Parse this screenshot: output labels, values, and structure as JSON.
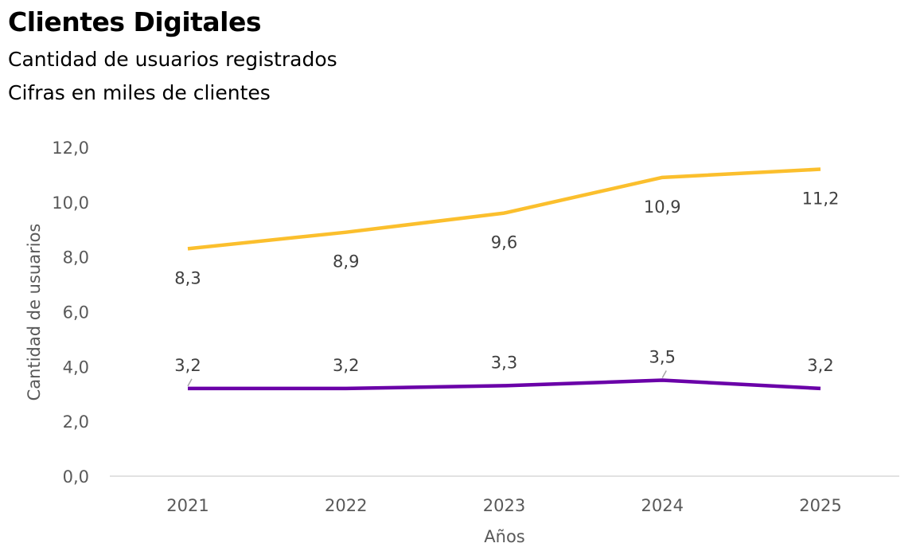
{
  "chart_data": {
    "type": "line",
    "title": "Clientes Digitales",
    "subtitle": "Cantidad de usuarios registrados",
    "subtitle2": "Cifras en miles de clientes",
    "xlabel": "Años",
    "ylabel": "Cantidad de usuarios",
    "categories": [
      "2021",
      "2022",
      "2023",
      "2024",
      "2025"
    ],
    "ylim": [
      0,
      12
    ],
    "yticks": [
      "0,0",
      "2,0",
      "4,0",
      "6,0",
      "8,0",
      "10,0",
      "12,0"
    ],
    "grid": false,
    "series": [
      {
        "values": [
          8.3,
          8.9,
          9.6,
          10.9,
          11.2
        ],
        "labels": [
          "8,3",
          "8,9",
          "9,6",
          "10,9",
          "11,2"
        ],
        "color": "#FBBF2D"
      },
      {
        "values": [
          3.2,
          3.2,
          3.3,
          3.5,
          3.2
        ],
        "labels": [
          "3,2",
          "3,2",
          "3,3",
          "3,5",
          "3,2"
        ],
        "color": "#6A00A8"
      }
    ]
  }
}
